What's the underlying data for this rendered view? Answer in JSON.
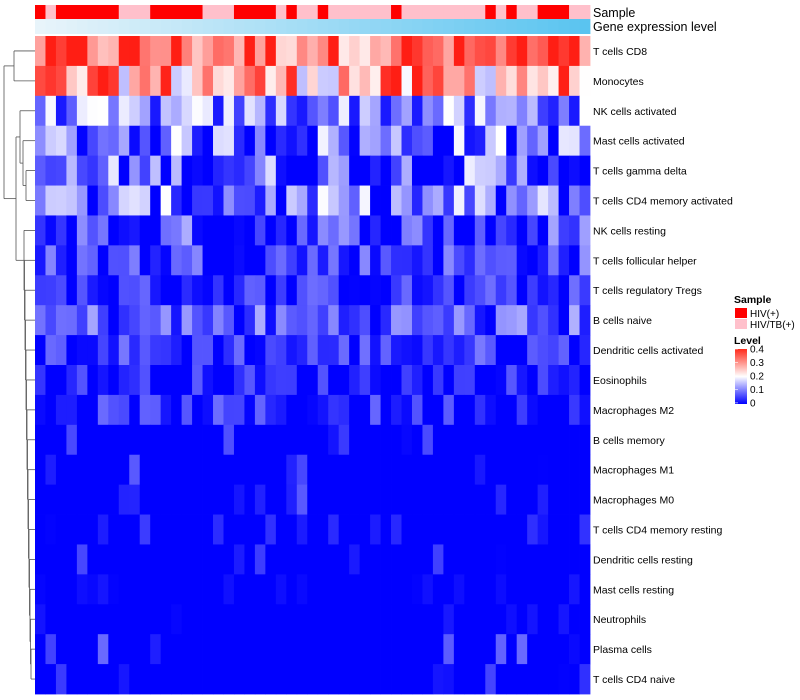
{
  "chart_data": {
    "type": "heatmap",
    "title": "",
    "annotation_labels": {
      "sample": "Sample",
      "level": "Gene expression level"
    },
    "sample_groups": [
      "HIV(+)",
      "HIV/TB(+)"
    ],
    "group_colors": {
      "HIV(+)": "#ff0000",
      "HIV/TB(+)": "#ffc0cb"
    },
    "sample_annotation": [
      0,
      1,
      0,
      0,
      0,
      0,
      0,
      0,
      1,
      1,
      1,
      0,
      0,
      0,
      0,
      0,
      1,
      1,
      1,
      0,
      0,
      0,
      0,
      1,
      0,
      1,
      1,
      0,
      1,
      1,
      1,
      1,
      1,
      1,
      0,
      1,
      1,
      1,
      1,
      1,
      1,
      1,
      1,
      0,
      1,
      0,
      1,
      1,
      0,
      0,
      0,
      1,
      1
    ],
    "rows": [
      "T cells CD8",
      "Monocytes",
      "NK cells activated",
      "Mast cells activated",
      "T cells gamma delta",
      "T cells CD4 memory activated",
      "NK cells resting",
      "T cells follicular helper",
      "T cells regulatory  Tregs",
      "B cells naive",
      "Dendritic cells activated",
      "Eosinophils",
      "Macrophages M2",
      "B cells memory",
      "Macrophages M1",
      "Macrophages M0",
      "T cells CD4 memory resting",
      "Dendritic cells resting",
      "Mast cells resting",
      "Neutrophils",
      "Plasma cells",
      "T cells CD4 naive"
    ],
    "n_columns": 53,
    "row_means": [
      0.33,
      0.27,
      0.1,
      0.09,
      0.06,
      0.08,
      0.035,
      0.05,
      0.03,
      0.06,
      0.04,
      0.02,
      0.025,
      0.015,
      0.01,
      0.015,
      0.005,
      0.008,
      0.002,
      0.002,
      0.015,
      0.005
    ],
    "row_ranges": [
      [
        0.22,
        0.42
      ],
      [
        0.15,
        0.4
      ],
      [
        0.02,
        0.2
      ],
      [
        0.0,
        0.2
      ],
      [
        0.0,
        0.22
      ],
      [
        0.0,
        0.2
      ],
      [
        0.0,
        0.18
      ],
      [
        0.0,
        0.12
      ],
      [
        0.0,
        0.1
      ],
      [
        0.0,
        0.14
      ],
      [
        0.0,
        0.1
      ],
      [
        0.0,
        0.09
      ],
      [
        0.0,
        0.1
      ],
      [
        0.0,
        0.08
      ],
      [
        0.0,
        0.07
      ],
      [
        0.0,
        0.08
      ],
      [
        0.0,
        0.05
      ],
      [
        0.0,
        0.06
      ],
      [
        0.0,
        0.02
      ],
      [
        0.0,
        0.02
      ],
      [
        0.0,
        0.09
      ],
      [
        0.0,
        0.06
      ]
    ],
    "legend": {
      "sample_title": "Sample",
      "level_title": "Level",
      "level_ticks": [
        "0.4",
        "0.3",
        "0.2",
        "0.1",
        "0"
      ],
      "level_range": [
        0,
        0.4
      ]
    },
    "colorscale": {
      "low": "#0000ff",
      "mid": "#ffffff",
      "high": "#ff0000"
    },
    "dendrogram": "rows"
  }
}
